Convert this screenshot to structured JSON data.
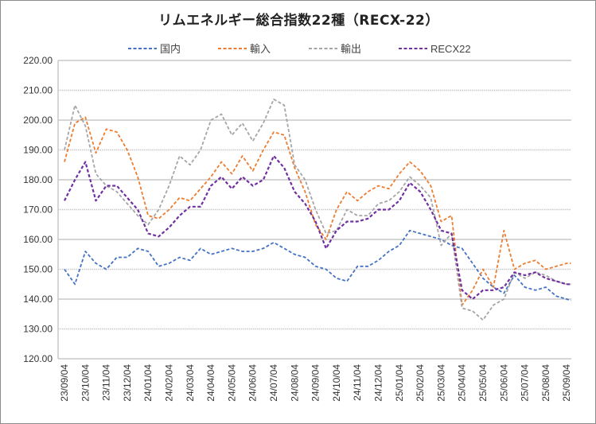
{
  "chart_data": {
    "type": "line",
    "title": "リムエネルギー総合指数22種（RECX-22）",
    "xlabel": "",
    "ylabel": "",
    "ylim": [
      120,
      220
    ],
    "yticks": [
      "120.00",
      "130.00",
      "140.00",
      "150.00",
      "160.00",
      "170.00",
      "180.00",
      "190.00",
      "200.00",
      "210.00",
      "220.00"
    ],
    "xticks": [
      "23/09/04",
      "23/10/04",
      "23/11/04",
      "23/12/04",
      "24/01/04",
      "24/02/04",
      "24/03/04",
      "24/04/04",
      "24/05/04",
      "24/06/04",
      "24/07/04",
      "24/08/04",
      "24/09/04",
      "24/10/04",
      "24/11/04",
      "24/12/04",
      "25/01/04",
      "25/02/04",
      "25/03/04",
      "25/04/04",
      "25/05/04",
      "25/06/04",
      "25/07/04",
      "25/08/04",
      "25/09/04"
    ],
    "x_months_since_start": [
      0,
      0.5,
      1,
      1.5,
      2,
      2.5,
      3,
      3.5,
      4,
      4.5,
      5,
      5.5,
      6,
      6.5,
      7,
      7.5,
      8,
      8.5,
      9,
      9.5,
      10,
      10.5,
      11,
      11.5,
      12,
      12.5,
      13,
      13.5,
      14,
      14.5,
      15,
      15.5,
      16,
      16.5,
      17,
      17.5,
      18,
      18.5,
      19,
      19.5,
      20,
      20.5,
      21,
      21.5,
      22,
      22.5,
      23,
      23.5,
      24,
      24.2
    ],
    "grid": true,
    "legend_position": "top",
    "series": [
      {
        "name": "国内",
        "color": "#4472C4",
        "values": [
          150,
          145,
          156,
          152,
          150,
          154,
          154,
          157,
          156,
          151,
          152,
          154,
          153,
          157,
          155,
          156,
          157,
          156,
          156,
          157,
          159,
          157,
          155,
          154,
          151,
          150,
          147,
          146,
          151,
          151,
          153,
          156,
          158,
          163,
          162,
          161,
          160,
          158,
          157,
          152,
          147,
          144,
          142,
          148,
          144,
          143,
          144,
          141,
          140,
          139.5
        ]
      },
      {
        "name": "輸入",
        "color": "#ED7D31",
        "values": [
          186,
          199,
          201,
          189,
          197,
          196,
          190,
          181,
          168,
          167,
          170,
          174,
          173,
          177,
          181,
          186,
          182,
          188,
          183,
          190,
          196,
          195,
          184,
          176,
          165,
          160,
          170,
          176,
          173,
          176,
          178,
          177,
          182,
          186,
          183,
          178,
          166,
          168,
          138,
          143,
          150,
          144,
          163,
          150,
          152,
          153,
          150,
          151,
          152,
          152
        ]
      },
      {
        "name": "輸出",
        "color": "#A5A5A5",
        "values": [
          190,
          205,
          198,
          182,
          178,
          176,
          172,
          168,
          165,
          170,
          178,
          188,
          185,
          190,
          200,
          202,
          195,
          199,
          193,
          199,
          207,
          205,
          185,
          180,
          170,
          162,
          163,
          170,
          168,
          168,
          172,
          173,
          176,
          181,
          178,
          174,
          158,
          162,
          137,
          136,
          133,
          138,
          140,
          149,
          147,
          149,
          148,
          146,
          145,
          145
        ]
      },
      {
        "name": "RECX22",
        "color": "#7030A0",
        "values": [
          173,
          180,
          186,
          173,
          178,
          178,
          174,
          170,
          162,
          161,
          164,
          168,
          171,
          171,
          178,
          181,
          177,
          181,
          178,
          180,
          188,
          184,
          176,
          172,
          166,
          157,
          163,
          166,
          166,
          167,
          170,
          170,
          173,
          179,
          176,
          170,
          163,
          162,
          143,
          140,
          143,
          143,
          144,
          149,
          148,
          149,
          147,
          146,
          145,
          145
        ]
      }
    ]
  }
}
